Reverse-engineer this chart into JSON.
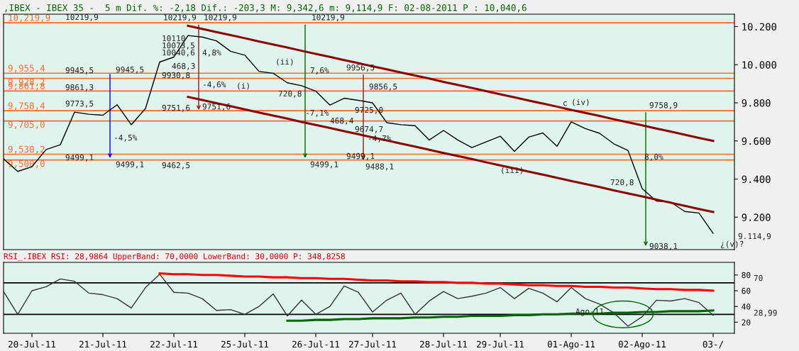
{
  "chart_data": [
    {
      "type": "line",
      "title": ",IBEX - IBEX 35 -  5 m Dif. %: -2,18 Dif.: -203,3 M: 9,342,6 m: 9,114,9 F: 02-08-2011 P : 10,040,6",
      "categories": [
        null,
        null,
        null,
        null,
        null,
        null,
        null,
        null,
        null,
        null,
        null,
        null,
        null,
        null,
        null,
        null,
        null,
        null,
        null,
        null,
        null,
        null,
        null,
        null,
        null,
        null,
        null,
        null,
        null,
        null,
        null,
        null,
        null,
        null,
        null,
        null,
        null,
        null,
        null,
        null,
        null,
        null,
        null,
        null,
        null,
        null,
        null,
        null,
        null,
        null,
        null
      ],
      "ylim": [
        9030,
        10265
      ],
      "yticks": [
        {
          "value": 9200,
          "label": "9.200"
        },
        {
          "value": 9400,
          "label": "9.400"
        },
        {
          "value": 9600,
          "label": "9.600"
        },
        {
          "value": 9800,
          "label": "9.800"
        },
        {
          "value": 10000,
          "label": "10.000"
        },
        {
          "value": 10200,
          "label": "10.200"
        }
      ],
      "tick_labels": "y",
      "grid": false,
      "legend": false,
      "series": [
        {
          "color": "#000000",
          "values": [
            9506,
            9440,
            9465,
            9555,
            9580,
            9751,
            9740,
            9735,
            9790,
            9685,
            9770,
            10014,
            10040,
            10153,
            10145,
            10125,
            10070,
            10050,
            9965,
            9955,
            9905,
            9890,
            9861,
            9788,
            9824,
            9813,
            9800,
            9696,
            9685,
            9680,
            9605,
            9655,
            9605,
            9565,
            9595,
            9625,
            9545,
            9620,
            9642,
            9572,
            9700,
            9665,
            9640,
            9585,
            9550,
            9350,
            9285,
            9280,
            9230,
            9222,
            9115
          ]
        },
        {
          "color": "#8b0000",
          "values": [
            null,
            null,
            null,
            null,
            null,
            null,
            null,
            null,
            null,
            null,
            null,
            null,
            null,
            10204,
            10188,
            10171,
            10155,
            10139,
            10122,
            10106,
            10090,
            10073,
            10057,
            10041,
            10024,
            10008,
            9992,
            9976,
            9959,
            9943,
            9927,
            9910,
            9894,
            9878,
            9861,
            9845,
            9829,
            9812,
            9796,
            9780,
            9763,
            9747,
            9731,
            9714,
            9698,
            9682,
            9665,
            9649,
            9633,
            9616,
            9600
          ]
        },
        {
          "color": "#8b0000",
          "values": [
            null,
            null,
            null,
            null,
            null,
            null,
            null,
            null,
            null,
            null,
            null,
            null,
            null,
            9831,
            9815,
            9798,
            9782,
            9766,
            9749,
            9733,
            9717,
            9700,
            9684,
            9668,
            9651,
            9635,
            9619,
            9603,
            9586,
            9570,
            9554,
            9537,
            9521,
            9505,
            9488,
            9472,
            9456,
            9439,
            9423,
            9407,
            9390,
            9374,
            9358,
            9341,
            9325,
            9309,
            9292,
            9276,
            9260,
            9243,
            9227
          ]
        }
      ],
      "ref_lines": [
        {
          "axis": "y",
          "value": 10219.9,
          "label": "10,219,9",
          "color": "#ff6633"
        },
        {
          "axis": "y",
          "value": 9955.4,
          "label": "9,955,4",
          "color": "#ff6633"
        },
        {
          "axis": "y",
          "value": 9928.2,
          "label": "9,928,2",
          "color": "#ff6633"
        },
        {
          "axis": "y",
          "value": 9861.8,
          "label": "9,861,8",
          "color": "#ff6633"
        },
        {
          "axis": "y",
          "value": 9758.4,
          "label": "9,758,4",
          "color": "#ff6633"
        },
        {
          "axis": "y",
          "value": 9705.0,
          "label": "9,705,0",
          "color": "#ff6633"
        },
        {
          "axis": "y",
          "value": 9530.2,
          "label": "9,530,2",
          "color": "#ff6633"
        },
        {
          "axis": "y",
          "value": 9500.0,
          "label": "9,500,0",
          "color": "#ff6633"
        }
      ],
      "annotations": [
        "10219,9",
        {
          "text": "10219,9",
          "y": 10219.9
        },
        {
          "text": "10219,9",
          "y": 10219.9
        },
        {
          "text": "10219,9",
          "y": 10219.9
        },
        "10110",
        "10073,5",
        "10040,6",
        "4,8%",
        "468,3",
        "9930,8",
        "9945,5",
        {
          "text": "9945,5",
          "y": 9945.5
        },
        "-4,6%",
        "(i)",
        "(ii)",
        "9861,3",
        "720,8",
        "7,6%",
        {
          "text": "9956,5",
          "y": 9956.5
        },
        {
          "text": "9856,5",
          "y": 9856.5
        },
        "9773,5",
        "9751,6",
        {
          "text": "9751,6",
          "y": 9751.6
        },
        "-7,1%",
        "9725,0",
        "468,4",
        "9674,7",
        "-4,7%",
        "-4,5%",
        "9499,1",
        {
          "text": "9499,1",
          "y": 9499.1
        },
        "9462,5",
        {
          "text": "9499,1",
          "y": 9499.1
        },
        "9499,1",
        {
          "text": "9488,1",
          "y": 9488.1
        },
        "(iii)",
        "c",
        "(iv)",
        {
          "text": "9758,9",
          "y": 9758.9
        },
        "8,0%",
        "720,8",
        "9038,1",
        "¿(v)?",
        "9.114,9"
      ]
    },
    {
      "type": "line",
      "title": "RSI_.IBEX RSI: 28,9864 UpperBand: 70,0000 LowerBand: 30,0000 P: 348,8258",
      "categories": [
        null,
        null,
        "20-Jul-11",
        null,
        null,
        null,
        null,
        "21-Jul-11",
        null,
        null,
        null,
        null,
        "22-Jul-11",
        null,
        null,
        null,
        null,
        "25-Jul-11",
        null,
        null,
        null,
        null,
        "26-Jul-11",
        null,
        null,
        null,
        "27-Jul-11",
        null,
        null,
        null,
        null,
        "28-Jul-11",
        null,
        null,
        null,
        "29-Jul-11",
        null,
        null,
        null,
        null,
        "01-Ago-11",
        null,
        null,
        null,
        null,
        "02-Ago-11",
        null,
        null,
        null,
        null,
        "03-/"
      ],
      "ylim": [
        6,
        96
      ],
      "yticks": [
        20,
        40,
        60,
        80
      ],
      "grid": false,
      "legend": false,
      "series": [
        {
          "color": "#333333",
          "values": [
            59,
            30,
            60,
            65,
            75,
            72,
            57,
            55,
            50,
            38,
            64,
            81,
            58,
            57,
            50,
            35,
            36,
            30,
            40,
            56,
            28,
            48,
            30,
            40,
            66,
            58,
            33,
            48,
            57,
            30,
            47,
            59,
            50,
            53,
            57,
            64,
            50,
            63,
            57,
            46,
            64,
            50,
            43,
            32,
            15,
            27,
            48,
            47,
            50,
            45,
            29
          ]
        },
        {
          "color": "#ff0000",
          "values": [
            null,
            null,
            null,
            null,
            null,
            null,
            null,
            null,
            null,
            null,
            null,
            82,
            81,
            81,
            80,
            80,
            79,
            78,
            78,
            77,
            77,
            76,
            76,
            75,
            75,
            74,
            73,
            73,
            72,
            72,
            71,
            71,
            70,
            70,
            69,
            69,
            68,
            67,
            67,
            66,
            66,
            65,
            65,
            64,
            64,
            63,
            62,
            62,
            61,
            61,
            60
          ]
        },
        {
          "color": "#006400",
          "values": [
            null,
            null,
            null,
            null,
            null,
            null,
            null,
            null,
            null,
            null,
            null,
            null,
            null,
            null,
            null,
            null,
            null,
            null,
            null,
            null,
            22,
            22,
            23,
            23,
            24,
            24,
            25,
            25,
            25,
            26,
            26,
            27,
            27,
            28,
            28,
            28,
            29,
            29,
            30,
            30,
            31,
            31,
            31,
            32,
            32,
            33,
            33,
            34,
            34,
            34,
            35
          ]
        }
      ],
      "ref_lines": [
        {
          "axis": "y",
          "value": 70,
          "color": "#000000"
        },
        {
          "axis": "y",
          "value": 30,
          "color": "#000000"
        }
      ],
      "annotations": [
        "Ago-11",
        "70",
        "28,99"
      ]
    }
  ]
}
